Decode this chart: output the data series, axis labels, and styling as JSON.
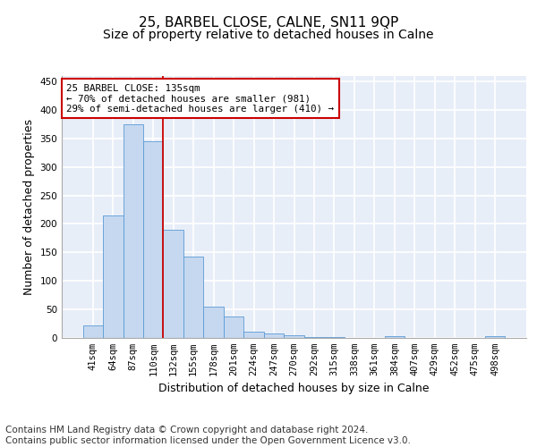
{
  "title": "25, BARBEL CLOSE, CALNE, SN11 9QP",
  "subtitle": "Size of property relative to detached houses in Calne",
  "xlabel": "Distribution of detached houses by size in Calne",
  "ylabel": "Number of detached properties",
  "categories": [
    "41sqm",
    "64sqm",
    "87sqm",
    "110sqm",
    "132sqm",
    "155sqm",
    "178sqm",
    "201sqm",
    "224sqm",
    "247sqm",
    "270sqm",
    "292sqm",
    "315sqm",
    "338sqm",
    "361sqm",
    "384sqm",
    "407sqm",
    "429sqm",
    "452sqm",
    "475sqm",
    "498sqm"
  ],
  "values": [
    21,
    215,
    375,
    345,
    190,
    142,
    55,
    37,
    10,
    7,
    4,
    1,
    1,
    0,
    0,
    2,
    0,
    0,
    0,
    0,
    2
  ],
  "bar_color": "#c5d8f0",
  "bar_edge_color": "#5b9bd5",
  "red_line_x": 3.5,
  "annotation_text": "25 BARBEL CLOSE: 135sqm\n← 70% of detached houses are smaller (981)\n29% of semi-detached houses are larger (410) →",
  "annotation_box_color": "#ffffff",
  "annotation_box_edge": "#cc0000",
  "ylim": [
    0,
    460
  ],
  "yticks": [
    0,
    50,
    100,
    150,
    200,
    250,
    300,
    350,
    400,
    450
  ],
  "background_color": "#e8eef8",
  "grid_color": "#ffffff",
  "footer": "Contains HM Land Registry data © Crown copyright and database right 2024.\nContains public sector information licensed under the Open Government Licence v3.0.",
  "title_fontsize": 11,
  "subtitle_fontsize": 10,
  "axis_label_fontsize": 9,
  "tick_fontsize": 7.5,
  "footer_fontsize": 7.5
}
